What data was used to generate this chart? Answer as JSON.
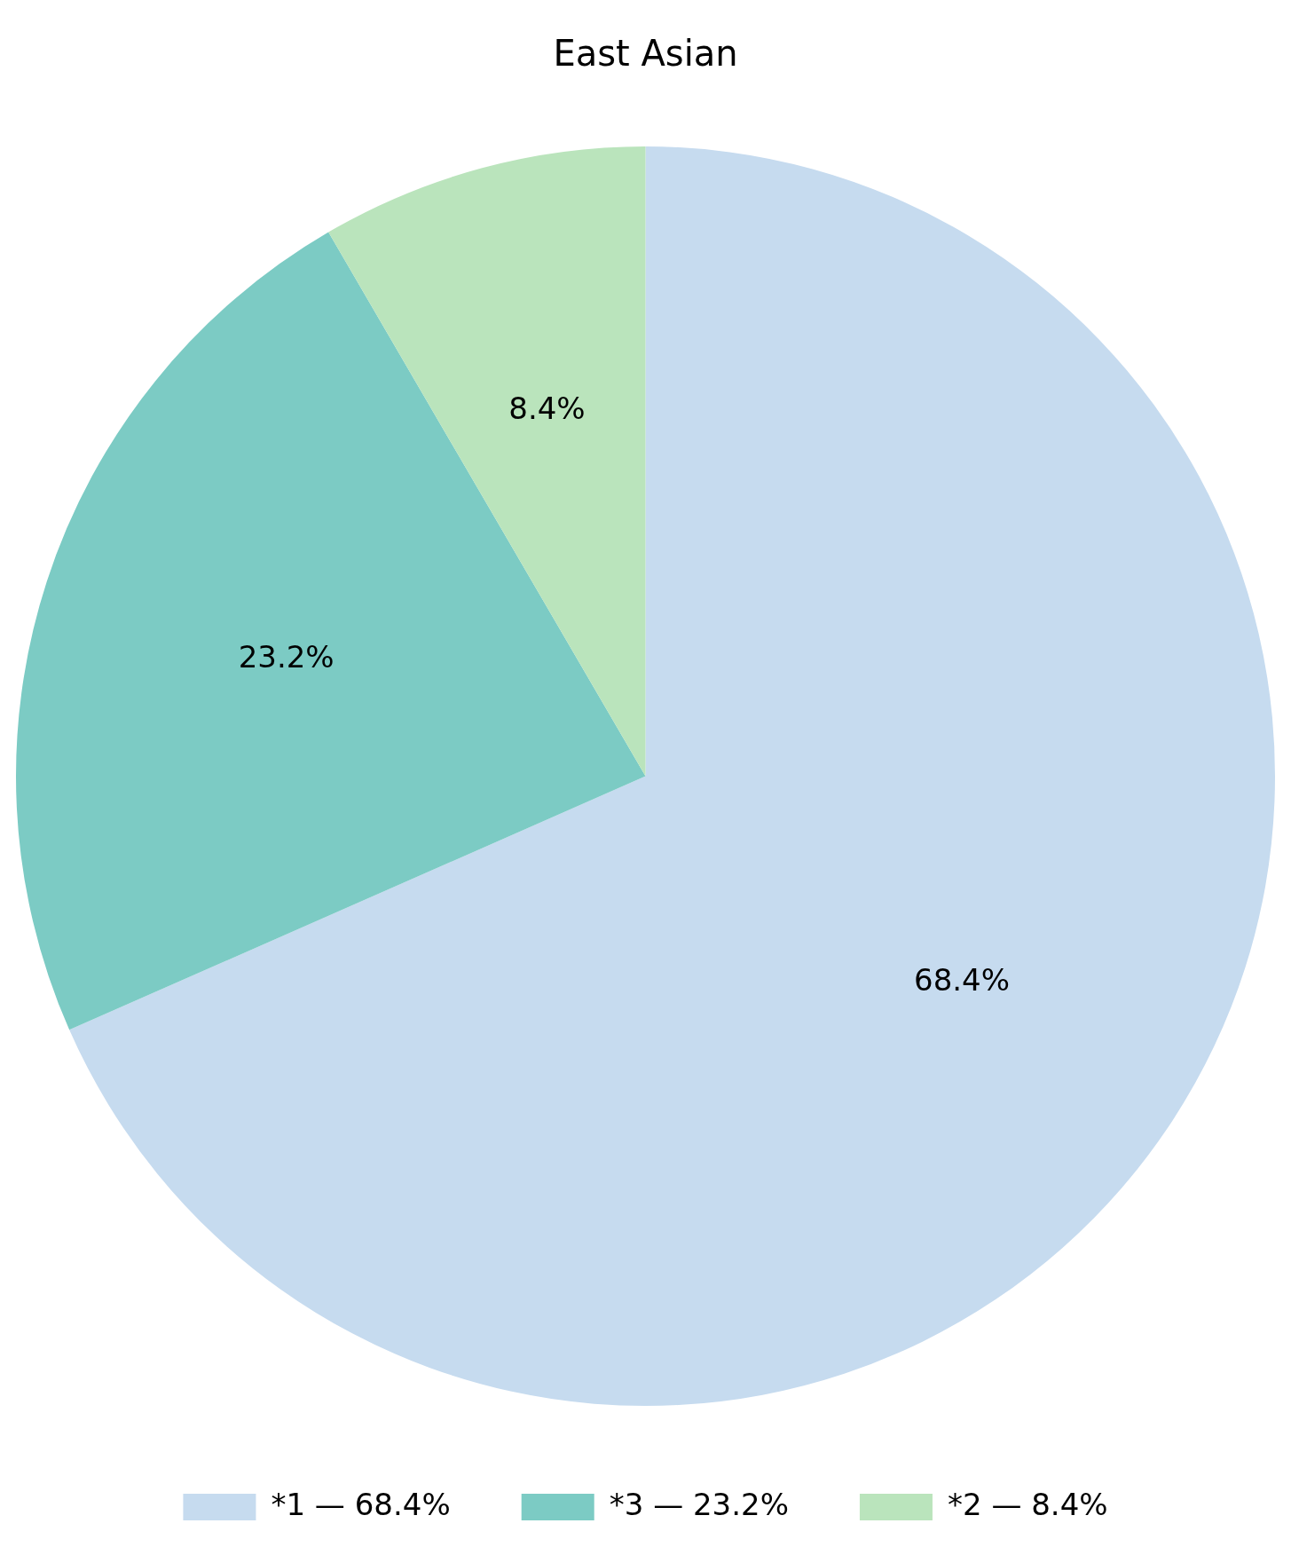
{
  "chart_data": {
    "type": "pie",
    "title": "East Asian",
    "categories": [
      "*1 — 68.4%",
      "*3 — 23.2%",
      "*2 — 8.4%"
    ],
    "values": [
      68.4,
      23.2,
      8.4
    ],
    "value_labels": [
      "68.4%",
      "23.2%",
      "8.4%"
    ],
    "colors": [
      "#c6dbef",
      "#7ccbc4",
      "#bae4bc"
    ],
    "legend": "bottom"
  }
}
